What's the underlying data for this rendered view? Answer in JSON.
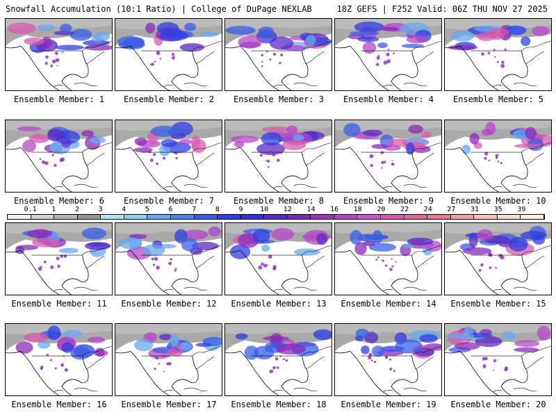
{
  "header": {
    "left": "Snowfall Accumulation (10:1 Ratio) | College of DuPage NEXLAB",
    "right": "18Z GEFS | F252 Valid: 06Z THU NOV 27 2025"
  },
  "panels": [
    {
      "label": "Ensemble Member: 1"
    },
    {
      "label": "Ensemble Member: 2"
    },
    {
      "label": "Ensemble Member: 3"
    },
    {
      "label": "Ensemble Member: 4"
    },
    {
      "label": "Ensemble Member: 5"
    },
    {
      "label": "Ensemble Member: 6"
    },
    {
      "label": "Ensemble Member: 7"
    },
    {
      "label": "Ensemble Member: 8"
    },
    {
      "label": "Ensemble Member: 9"
    },
    {
      "label": "Ensemble Member: 10"
    },
    {
      "label": "Ensemble Member: 11"
    },
    {
      "label": "Ensemble Member: 12"
    },
    {
      "label": "Ensemble Member: 13"
    },
    {
      "label": "Ensemble Member: 14"
    },
    {
      "label": "Ensemble Member: 15"
    },
    {
      "label": "Ensemble Member: 16"
    },
    {
      "label": "Ensemble Member: 17"
    },
    {
      "label": "Ensemble Member: 18"
    },
    {
      "label": "Ensemble Member: 19"
    },
    {
      "label": "Ensemble Member: 20"
    }
  ],
  "colorbar": {
    "labels": [
      "0.1",
      "1",
      "2",
      "3",
      "4",
      "5",
      "6",
      "7",
      "8",
      "9",
      "10",
      "12",
      "14",
      "16",
      "18",
      "20",
      "22",
      "24",
      "27",
      "31",
      "35",
      "39"
    ],
    "colors": [
      "#f0f0f0",
      "#d2d2d2",
      "#b4b4b4",
      "#969696",
      "#a8e6f5",
      "#8ecdf5",
      "#6aa8f0",
      "#4f86eb",
      "#3a5ee6",
      "#2f3fe0",
      "#3a2fd0",
      "#5a2ac4",
      "#7a2ab8",
      "#9a35c0",
      "#b547c8",
      "#cc55c8",
      "#d85bb0",
      "#e06898",
      "#e87a88",
      "#efa0a0",
      "#f5c3b5",
      "#fadcc8",
      "#fdeedd"
    ]
  }
}
